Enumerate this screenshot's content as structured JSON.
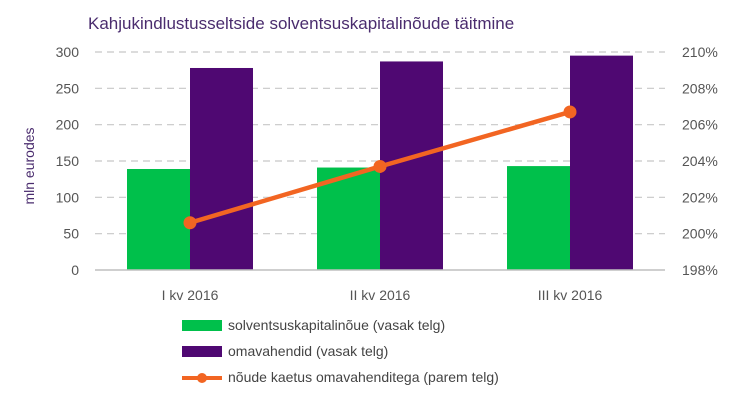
{
  "chart_data": {
    "type": "bar",
    "title": "Kahjukindlustusseltside solventsuskapitalinõude täitmine",
    "categories": [
      "I kv 2016",
      "II kv 2016",
      "III kv 2016"
    ],
    "ylabel": "mln eurodes",
    "ylim": [
      0,
      300
    ],
    "yticks": [
      "0",
      "50",
      "100",
      "150",
      "200",
      "250",
      "300"
    ],
    "y2lim": [
      198,
      210
    ],
    "y2ticks": [
      "198%",
      "200%",
      "202%",
      "204%",
      "206%",
      "208%",
      "210%"
    ],
    "grid": true,
    "legend_position": "bottom",
    "series": [
      {
        "name": "solventsuskapitalinõue (vasak telg)",
        "type": "bar",
        "axis": "left",
        "color": "#00c04b",
        "values": [
          139,
          141,
          143
        ]
      },
      {
        "name": "omavahendid (vasak telg)",
        "type": "bar",
        "axis": "left",
        "color": "#4f0872",
        "values": [
          278,
          287,
          295
        ]
      },
      {
        "name": "nõude kaetus omavahenditega (parem telg)",
        "type": "line",
        "axis": "right",
        "color": "#f26522",
        "values": [
          200.6,
          203.7,
          206.7
        ]
      }
    ]
  }
}
